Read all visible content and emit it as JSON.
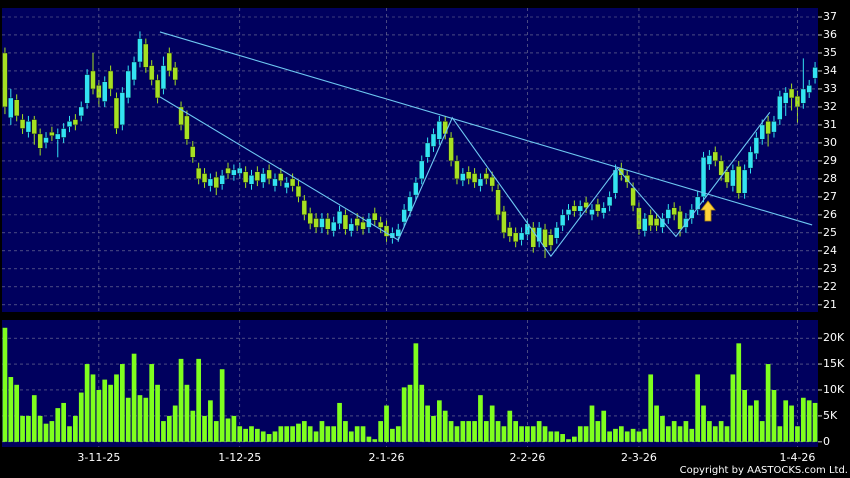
{
  "chart_data": [
    {
      "type": "candlestick",
      "up_color": "#33e3f2",
      "down_color": "#a6e022",
      "grid": true,
      "ylim": [
        20.6,
        37.5
      ],
      "yticks": [
        21,
        22,
        23,
        24,
        25,
        26,
        27,
        28,
        29,
        30,
        31,
        32,
        33,
        34,
        35,
        36,
        37
      ],
      "open": [
        35.0,
        31.4,
        32.4,
        31.3,
        30.6,
        31.3,
        30.5,
        30.0,
        30.6,
        30.2,
        30.3,
        30.9,
        31.3,
        31.5,
        32.2,
        34.0,
        33.2,
        32.3,
        34.0,
        32.5,
        31.0,
        32.5,
        33.5,
        34.5,
        35.5,
        34.3,
        33.5,
        33.0,
        35.0,
        34.2,
        32.0,
        31.5,
        29.8,
        28.6,
        28.3,
        27.6,
        28.1,
        27.7,
        28.6,
        28.2,
        28.3,
        28.4,
        27.7,
        28.4,
        27.8,
        28.5,
        27.6,
        28.3,
        27.5,
        28.0,
        27.6,
        26.8,
        26.1,
        25.8,
        25.3,
        25.8,
        25.1,
        25.5,
        26.0,
        25.1,
        25.8,
        25.6,
        25.3,
        26.1,
        25.6,
        25.4,
        24.7,
        24.8,
        25.6,
        26.2,
        27.1,
        28.0,
        29.2,
        29.8,
        30.2,
        31.2,
        30.3,
        29.0,
        27.9,
        28.4,
        28.3,
        27.6,
        28.3,
        28.1,
        27.4,
        26.2,
        25.3,
        25.0,
        24.6,
        24.9,
        25.3,
        24.5,
        25.2,
        24.9,
        24.7,
        25.4,
        26.0,
        26.5,
        26.2,
        26.7,
        26.0,
        26.6,
        26.1,
        26.5,
        27.2,
        28.6,
        28.2,
        27.5,
        26.4,
        25.1,
        26.0,
        25.8,
        25.3,
        25.8,
        26.4,
        26.2,
        25.3,
        25.8,
        26.3,
        27.0,
        28.8,
        29.5,
        29.0,
        28.4,
        27.6,
        28.7,
        27.2,
        28.6,
        29.4,
        30.2,
        31.2,
        30.6,
        31.3,
        32.2,
        33.0,
        32.6,
        32.2,
        32.8,
        33.6
      ],
      "high": [
        35.3,
        33.0,
        32.7,
        31.6,
        31.5,
        31.5,
        30.8,
        30.6,
        30.9,
        30.8,
        31.1,
        31.5,
        31.6,
        32.3,
        34.1,
        35.0,
        33.5,
        33.7,
        34.3,
        32.8,
        33.1,
        34.3,
        34.8,
        36.2,
        35.8,
        34.6,
        33.8,
        34.8,
        35.3,
        34.5,
        32.3,
        31.8,
        30.1,
        28.9,
        28.6,
        28.3,
        28.4,
        28.5,
        28.9,
        28.8,
        28.9,
        28.7,
        28.5,
        28.7,
        28.6,
        28.8,
        28.3,
        28.6,
        28.1,
        28.3,
        27.9,
        27.1,
        26.4,
        26.1,
        26.1,
        26.1,
        25.9,
        26.5,
        26.3,
        25.8,
        26.1,
        25.9,
        26.1,
        26.4,
        25.9,
        25.7,
        25.3,
        25.5,
        26.6,
        27.3,
        28.1,
        29.3,
        30.3,
        30.8,
        31.5,
        31.5,
        30.6,
        29.3,
        28.6,
        28.7,
        28.6,
        28.3,
        28.6,
        28.4,
        27.7,
        26.5,
        25.6,
        25.3,
        25.3,
        25.8,
        25.6,
        25.6,
        25.5,
        25.2,
        25.6,
        26.3,
        26.6,
        26.8,
        26.8,
        27.0,
        26.6,
        26.9,
        26.7,
        27.3,
        28.8,
        28.9,
        28.5,
        27.8,
        26.7,
        26.1,
        26.3,
        26.1,
        26.1,
        26.6,
        26.7,
        26.5,
        26.1,
        26.6,
        27.3,
        29.5,
        29.6,
        29.8,
        29.3,
        28.7,
        28.8,
        29.0,
        28.8,
        29.8,
        30.6,
        31.3,
        31.5,
        31.5,
        32.9,
        33.1,
        33.3,
        32.9,
        34.7,
        33.5,
        34.5
      ],
      "low": [
        31.6,
        31.0,
        31.2,
        30.5,
        30.3,
        29.9,
        29.3,
        29.7,
        30.1,
        29.2,
        30.0,
        30.6,
        30.7,
        31.2,
        31.9,
        32.7,
        32.0,
        32.0,
        32.6,
        30.5,
        30.7,
        32.2,
        33.2,
        34.2,
        33.9,
        33.2,
        32.2,
        32.7,
        33.7,
        33.2,
        30.7,
        29.9,
        28.9,
        27.7,
        27.5,
        27.3,
        27.1,
        27.4,
        28.0,
        27.9,
        28.0,
        27.5,
        27.4,
        27.6,
        27.5,
        27.7,
        27.3,
        27.6,
        27.2,
        27.3,
        26.7,
        25.7,
        25.2,
        25.0,
        25.0,
        24.9,
        24.8,
        25.2,
        24.9,
        24.8,
        25.1,
        24.9,
        25.0,
        25.4,
        25.0,
        24.5,
        24.4,
        24.5,
        25.3,
        25.9,
        26.8,
        27.7,
        28.9,
        29.5,
        29.9,
        30.2,
        28.7,
        27.7,
        27.6,
        27.7,
        27.5,
        27.3,
        27.7,
        27.3,
        25.7,
        24.7,
        24.5,
        24.2,
        24.3,
        24.6,
        23.9,
        24.2,
        23.6,
        24.0,
        24.4,
        25.1,
        25.7,
        25.9,
        25.9,
        26.1,
        25.7,
        25.9,
        25.8,
        26.2,
        26.9,
        27.9,
        27.5,
        26.2,
        24.9,
        24.8,
        25.1,
        25.1,
        25.0,
        25.5,
        25.7,
        24.8,
        25.0,
        25.5,
        26.0,
        26.7,
        28.5,
        28.7,
        27.9,
        27.5,
        27.3,
        26.9,
        26.9,
        28.3,
        29.1,
        29.9,
        29.8,
        30.3,
        31.0,
        31.5,
        31.8,
        31.1,
        31.9,
        32.5,
        33.3
      ],
      "close": [
        32.0,
        32.5,
        31.5,
        30.8,
        31.2,
        30.5,
        29.7,
        30.3,
        30.4,
        30.5,
        30.8,
        31.2,
        31.0,
        32.0,
        33.8,
        33.0,
        32.5,
        33.4,
        33.0,
        30.8,
        32.8,
        34.0,
        34.5,
        35.8,
        34.2,
        33.5,
        32.5,
        34.3,
        34.0,
        33.5,
        31.0,
        30.2,
        29.2,
        28.0,
        27.8,
        28.0,
        27.5,
        28.2,
        28.3,
        28.5,
        28.6,
        27.8,
        28.2,
        27.9,
        28.3,
        28.0,
        28.0,
        27.9,
        27.8,
        27.6,
        27.0,
        26.0,
        25.5,
        25.3,
        25.8,
        25.2,
        25.6,
        26.2,
        25.2,
        25.5,
        25.4,
        25.2,
        25.8,
        25.7,
        25.3,
        24.8,
        25.0,
        25.2,
        26.3,
        27.0,
        27.8,
        29.0,
        30.0,
        30.5,
        31.2,
        30.5,
        29.0,
        28.0,
        28.3,
        28.0,
        27.8,
        28.0,
        28.0,
        27.6,
        26.0,
        25.0,
        24.8,
        24.5,
        25.0,
        25.5,
        24.2,
        25.3,
        24.2,
        24.3,
        25.3,
        26.0,
        26.3,
        26.2,
        26.5,
        26.4,
        26.3,
        26.2,
        26.4,
        27.0,
        28.5,
        28.2,
        27.8,
        26.5,
        25.2,
        25.8,
        25.4,
        25.4,
        25.8,
        26.3,
        26.0,
        25.2,
        25.8,
        26.3,
        27.0,
        29.2,
        29.3,
        29.0,
        28.2,
        27.8,
        28.5,
        27.2,
        28.5,
        29.5,
        30.3,
        31.0,
        30.5,
        31.2,
        32.6,
        32.8,
        32.5,
        32.0,
        33.0,
        33.2,
        34.2
      ],
      "trendlines": [
        {
          "color": "#6ec8f2",
          "x": [
            26.4,
            137.5
          ],
          "y": [
            36.17,
            25.44
          ]
        },
        {
          "color": "#6ec8f2",
          "x": [
            26.4,
            67,
            76.2,
            93,
            104.3,
            114.3,
            130.3
          ],
          "y": [
            32.56,
            24.6,
            31.4,
            23.7,
            28.6,
            24.8,
            31.7
          ]
        }
      ]
    },
    {
      "type": "bar",
      "color": "#7fff1e",
      "grid": true,
      "ylim": [
        -1000,
        23500
      ],
      "yticks": [
        0,
        {
          "value": 5000,
          "label": "5K"
        },
        {
          "value": 10000,
          "label": "10K"
        },
        {
          "value": 15000,
          "label": "15K"
        },
        {
          "value": 20000,
          "label": "20K"
        }
      ],
      "categories": [
        null,
        null,
        null,
        null,
        null,
        null,
        null,
        null,
        null,
        null,
        null,
        null,
        null,
        null,
        null,
        null,
        "3-11-25",
        null,
        null,
        null,
        null,
        null,
        null,
        null,
        null,
        null,
        null,
        null,
        null,
        null,
        null,
        null,
        null,
        null,
        null,
        null,
        null,
        null,
        null,
        null,
        "1-12-25",
        null,
        null,
        null,
        null,
        null,
        null,
        null,
        null,
        null,
        null,
        null,
        null,
        null,
        null,
        null,
        null,
        null,
        null,
        null,
        null,
        null,
        null,
        null,
        null,
        "2-1-26",
        null,
        null,
        null,
        null,
        null,
        null,
        null,
        null,
        null,
        null,
        null,
        null,
        null,
        null,
        null,
        null,
        null,
        null,
        null,
        null,
        null,
        null,
        null,
        "2-2-26",
        null,
        null,
        null,
        null,
        null,
        null,
        null,
        null,
        null,
        null,
        null,
        null,
        null,
        null,
        null,
        null,
        null,
        null,
        "2-3-26",
        null,
        null,
        null,
        null,
        null,
        null,
        null,
        null,
        null,
        null,
        null,
        null,
        null,
        null,
        null,
        null,
        null,
        null,
        null,
        null,
        null,
        null,
        null,
        null,
        null,
        null,
        "1-4-26",
        null,
        null,
        null
      ],
      "values": [
        22000,
        12500,
        11000,
        5000,
        5000,
        9000,
        5000,
        3500,
        4000,
        6500,
        7500,
        3000,
        5000,
        9500,
        15000,
        13000,
        10000,
        12000,
        11000,
        13000,
        15000,
        8500,
        17000,
        9000,
        8500,
        15000,
        11000,
        4000,
        5000,
        7000,
        16000,
        11000,
        6000,
        16000,
        5000,
        8000,
        4000,
        14000,
        4500,
        5000,
        3000,
        2500,
        3000,
        2500,
        2000,
        1500,
        2000,
        3000,
        3000,
        3000,
        3500,
        4000,
        3000,
        2000,
        4000,
        3000,
        3000,
        7500,
        4000,
        2000,
        3000,
        3000,
        1000,
        500,
        4000,
        7000,
        2500,
        3000,
        10500,
        11000,
        19000,
        11000,
        7000,
        5000,
        8000,
        6000,
        4000,
        3000,
        4000,
        4000,
        4000,
        9000,
        4000,
        7000,
        4000,
        3000,
        6000,
        4000,
        3000,
        3000,
        3000,
        4000,
        3000,
        2000,
        2000,
        1500,
        500,
        1000,
        3000,
        3000,
        7000,
        4000,
        6000,
        2000,
        2500,
        3000,
        2000,
        2500,
        2000,
        2500,
        13000,
        7000,
        5000,
        3000,
        4000,
        3000,
        4000,
        2500,
        13000,
        7000,
        4000,
        3000,
        4000,
        3000,
        13000,
        19000,
        10000,
        7000,
        8000,
        4000,
        15000,
        10000,
        3000,
        8000,
        7000,
        3000,
        8500,
        8000,
        7500
      ]
    }
  ],
  "copyright": "Copyright by AASTOCKS.com Ltd."
}
